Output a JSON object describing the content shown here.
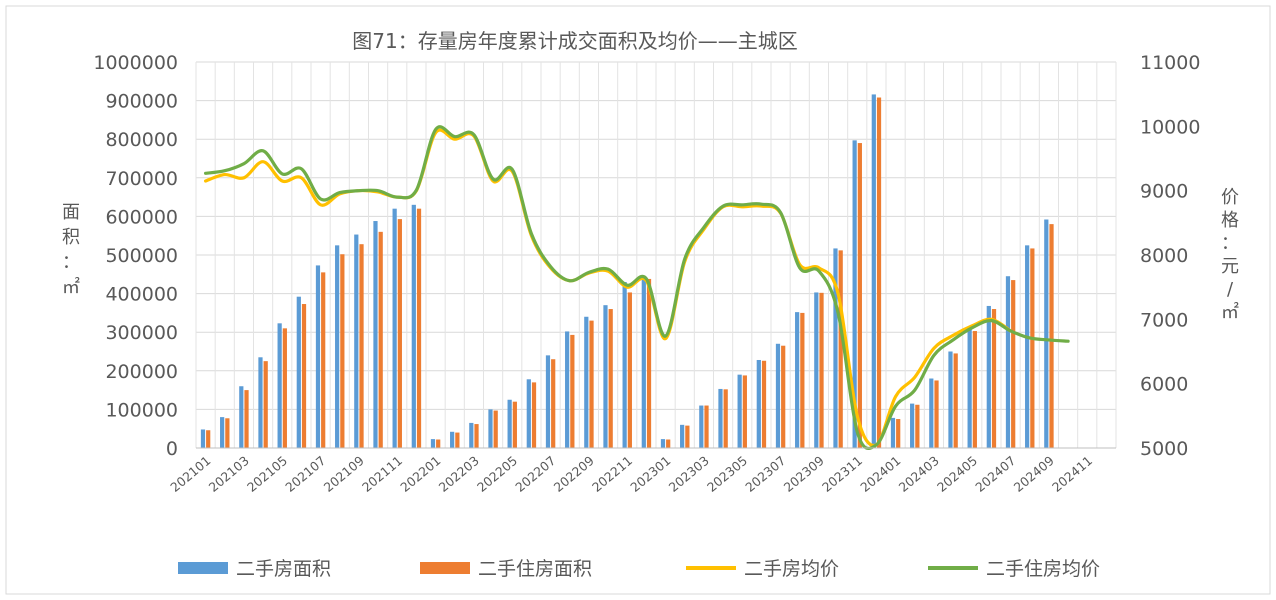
{
  "chart_data": {
    "type": "bar",
    "title": "图71：存量房年度累计成交面积及均价——主城区",
    "ylabel": "面积：㎡",
    "y2label": "价格：元/㎡",
    "ylim": [
      0,
      1000000
    ],
    "y2lim": [
      5000,
      11000
    ],
    "yticks": [
      "0",
      "100000",
      "200000",
      "300000",
      "400000",
      "500000",
      "600000",
      "700000",
      "800000",
      "900000",
      "1000000"
    ],
    "y2ticks": [
      "5000",
      "6000",
      "7000",
      "8000",
      "9000",
      "10000",
      "11000"
    ],
    "grid": true,
    "legend_position": "bottom",
    "categories": [
      "202101",
      "202102",
      "202103",
      "202104",
      "202105",
      "202106",
      "202107",
      "202108",
      "202109",
      "202110",
      "202111",
      "202112",
      "202201",
      "202202",
      "202203",
      "202204",
      "202205",
      "202206",
      "202207",
      "202208",
      "202209",
      "202210",
      "202211",
      "202212",
      "202301",
      "202302",
      "202303",
      "202304",
      "202305",
      "202306",
      "202307",
      "202308",
      "202309",
      "202310",
      "202311",
      "202312",
      "202401",
      "202402",
      "202403",
      "202404",
      "202405",
      "202406",
      "202407",
      "202408",
      "202409",
      "202410",
      "202411",
      "202412"
    ],
    "xtick_labels": [
      "202101",
      "202103",
      "202105",
      "202107",
      "202109",
      "202111",
      "202201",
      "202203",
      "202205",
      "202207",
      "202209",
      "202211",
      "202301",
      "202303",
      "202305",
      "202307",
      "202309",
      "202311",
      "202401",
      "202403",
      "202405",
      "202407",
      "202409",
      "202411"
    ],
    "series": [
      {
        "name": "二手房面积",
        "kind": "bar",
        "axis": "left",
        "color": "#5b9bd5",
        "values": [
          48000,
          80000,
          160000,
          235000,
          323000,
          392000,
          473000,
          525000,
          553000,
          588000,
          620000,
          630000,
          23000,
          42000,
          65000,
          100000,
          125000,
          178000,
          240000,
          302000,
          340000,
          370000,
          430000,
          443000,
          23000,
          60000,
          110000,
          153000,
          190000,
          228000,
          270000,
          352000,
          403000,
          517000,
          797000,
          916000,
          78000,
          115000,
          180000,
          250000,
          310000,
          368000,
          445000,
          525000,
          592000,
          null,
          null,
          null
        ]
      },
      {
        "name": "二手住房面积",
        "kind": "bar",
        "axis": "left",
        "color": "#ed7d31",
        "values": [
          46000,
          77000,
          150000,
          225000,
          310000,
          373000,
          455000,
          502000,
          528000,
          560000,
          593000,
          620000,
          22000,
          40000,
          62000,
          97000,
          120000,
          170000,
          230000,
          293000,
          330000,
          360000,
          403000,
          438000,
          22000,
          58000,
          110000,
          152000,
          188000,
          226000,
          265000,
          350000,
          402000,
          512000,
          790000,
          908000,
          75000,
          112000,
          175000,
          245000,
          303000,
          360000,
          435000,
          517000,
          580000,
          null,
          null,
          null
        ]
      },
      {
        "name": "二手房均价",
        "kind": "line",
        "axis": "right",
        "color": "#ffc000",
        "values": [
          9150,
          9250,
          9200,
          9450,
          9150,
          9200,
          8780,
          8950,
          9000,
          8980,
          8900,
          9000,
          9900,
          9800,
          9850,
          9150,
          9300,
          8300,
          7800,
          7600,
          7720,
          7750,
          7500,
          7600,
          6700,
          7900,
          8400,
          8750,
          8750,
          8760,
          8650,
          7850,
          7800,
          7400,
          5500,
          5050,
          5800,
          6100,
          6550,
          6750,
          6900,
          7000,
          6820,
          null,
          null,
          null,
          null,
          null
        ]
      },
      {
        "name": "二手住房均价",
        "kind": "line",
        "axis": "right",
        "color": "#70ad47",
        "values": [
          9270,
          9310,
          9420,
          9620,
          9260,
          9340,
          8870,
          8970,
          9000,
          9000,
          8900,
          9010,
          9950,
          9840,
          9870,
          9180,
          9330,
          8330,
          7820,
          7600,
          7730,
          7780,
          7530,
          7630,
          6740,
          7940,
          8430,
          8760,
          8780,
          8790,
          8660,
          7800,
          7750,
          7100,
          5250,
          5050,
          5650,
          5900,
          6440,
          6680,
          6870,
          6980,
          6820,
          6710,
          6680,
          6660,
          null,
          null
        ]
      }
    ]
  }
}
